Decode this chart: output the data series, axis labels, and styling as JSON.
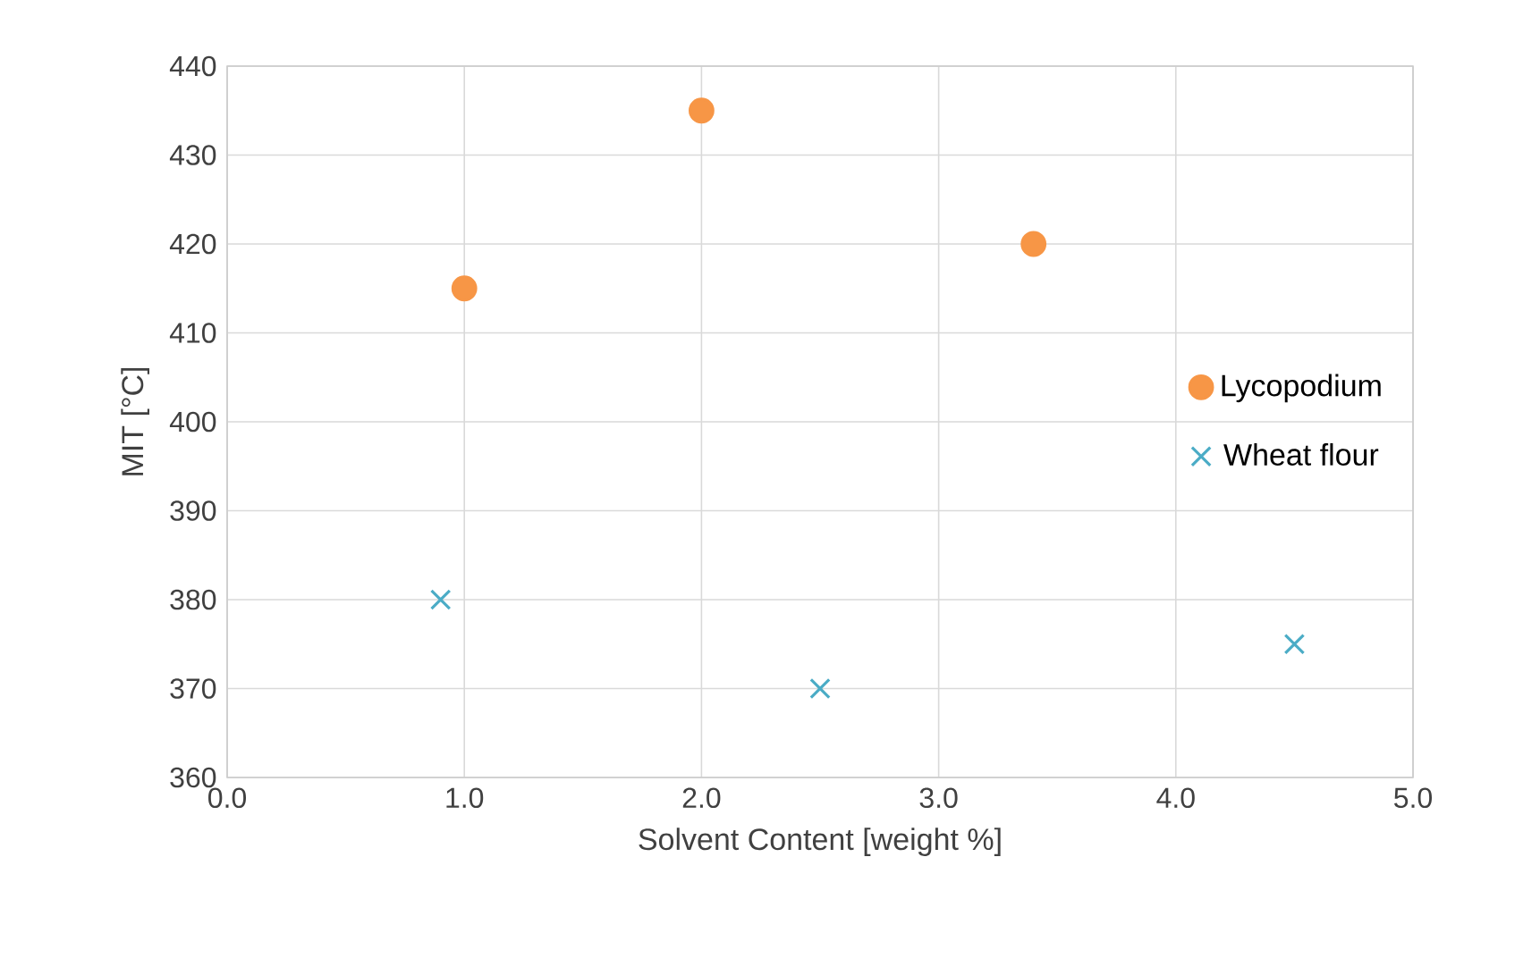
{
  "chart_data": {
    "type": "scatter",
    "xlabel": "Solvent Content [weight %]",
    "ylabel": "MIT [°C]",
    "xlim": [
      0,
      5
    ],
    "ylim": [
      360,
      440
    ],
    "xticks": [
      {
        "value": 0,
        "label": "0.0"
      },
      {
        "value": 1,
        "label": "1.0"
      },
      {
        "value": 2,
        "label": "2.0"
      },
      {
        "value": 3,
        "label": "3.0"
      },
      {
        "value": 4,
        "label": "4.0"
      },
      {
        "value": 5,
        "label": "5.0"
      }
    ],
    "yticks": [
      360,
      370,
      380,
      390,
      400,
      410,
      420,
      430,
      440
    ],
    "grid": true,
    "legend": "right",
    "series": [
      {
        "name": "Lycopodium",
        "color": "#f79646",
        "marker": "circle",
        "x": [
          1.0,
          2.0,
          3.4
        ],
        "values": [
          415,
          435,
          420
        ]
      },
      {
        "name": "Wheat flour",
        "color": "#4bacc6",
        "marker": "cross",
        "x": [
          0.9,
          2.5,
          4.5
        ],
        "values": [
          380,
          370,
          375
        ]
      }
    ]
  }
}
